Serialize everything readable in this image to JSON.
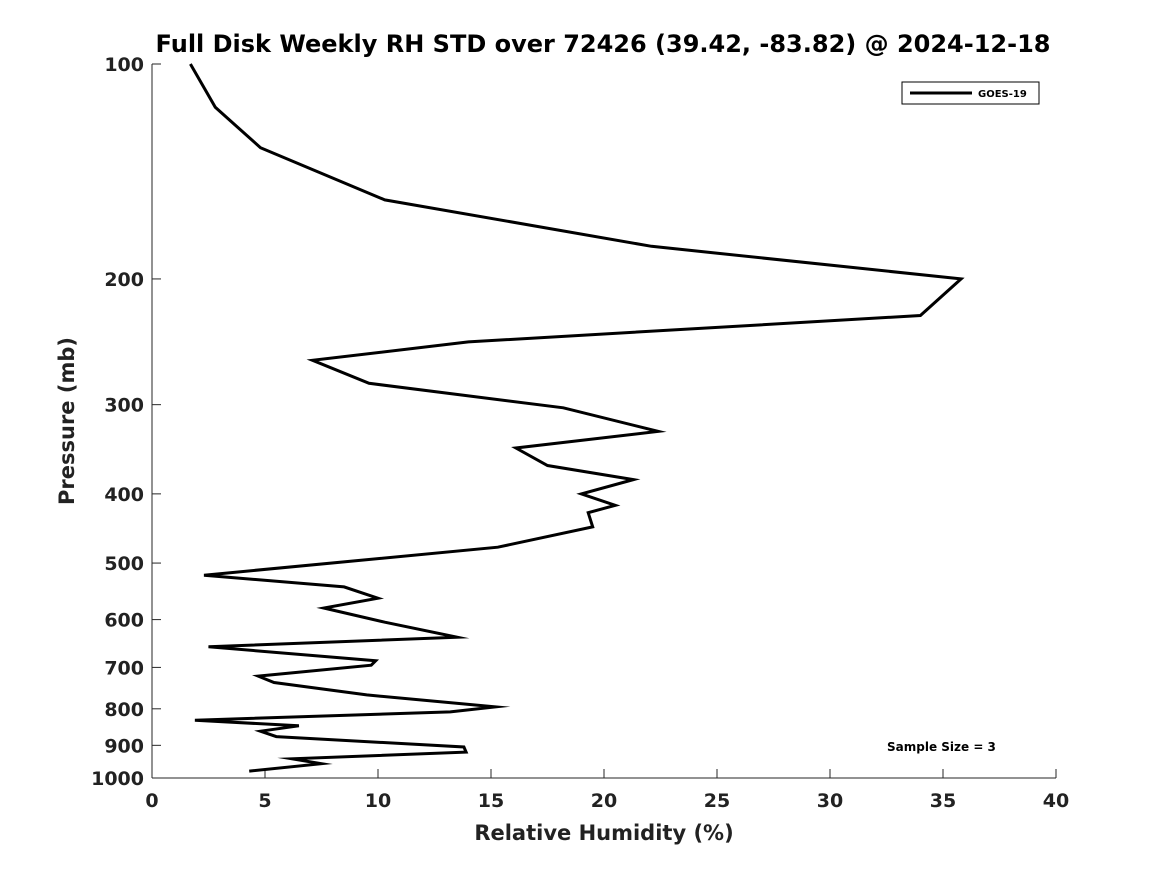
{
  "chart_data": {
    "type": "line",
    "title": "Full Disk Weekly RH STD over 72426 (39.42, -83.82) @ 2024-12-18",
    "xlabel": "Relative Humidity (%)",
    "ylabel": "Pressure (mb)",
    "xlim": [
      0,
      40
    ],
    "ylim": [
      100,
      1000
    ],
    "y_scale": "log",
    "y_reversed": true,
    "x_ticks": [
      0,
      5,
      10,
      15,
      20,
      25,
      30,
      35,
      40
    ],
    "x_tick_labels": [
      "0",
      "5",
      "10",
      "15",
      "20",
      "25",
      "30",
      "35",
      "40"
    ],
    "y_ticks": [
      100,
      200,
      300,
      400,
      500,
      600,
      700,
      800,
      900,
      1000
    ],
    "y_tick_labels": [
      "100",
      "200",
      "300",
      "400",
      "500",
      "600",
      "700",
      "800",
      "900",
      "1000"
    ],
    "grid": false,
    "legend_position": "top-right",
    "annotation": "Sample Size = 3",
    "series": [
      {
        "name": "GOES-19",
        "color": "#000000",
        "x": [
          1.7,
          2.8,
          4.8,
          10.3,
          22.1,
          35.8,
          34.0,
          14.0,
          7.1,
          9.6,
          18.2,
          22.4,
          16.1,
          17.5,
          21.3,
          19.0,
          20.5,
          19.3,
          19.5,
          15.3,
          2.3,
          8.5,
          10.0,
          7.6,
          10.3,
          13.5,
          2.5,
          9.9,
          9.7,
          4.7,
          5.4,
          9.5,
          15.2,
          13.2,
          1.9,
          6.5,
          4.8,
          5.5,
          13.8,
          13.9,
          6.2,
          7.5,
          4.3
        ],
        "y": [
          100,
          115,
          131,
          155,
          180,
          200,
          225,
          245,
          260,
          280,
          303,
          327,
          345,
          365,
          382,
          400,
          415,
          425,
          445,
          475,
          520,
          540,
          560,
          578,
          605,
          635,
          655,
          685,
          695,
          720,
          735,
          765,
          795,
          808,
          830,
          845,
          860,
          875,
          905,
          920,
          940,
          955,
          978
        ]
      }
    ]
  }
}
